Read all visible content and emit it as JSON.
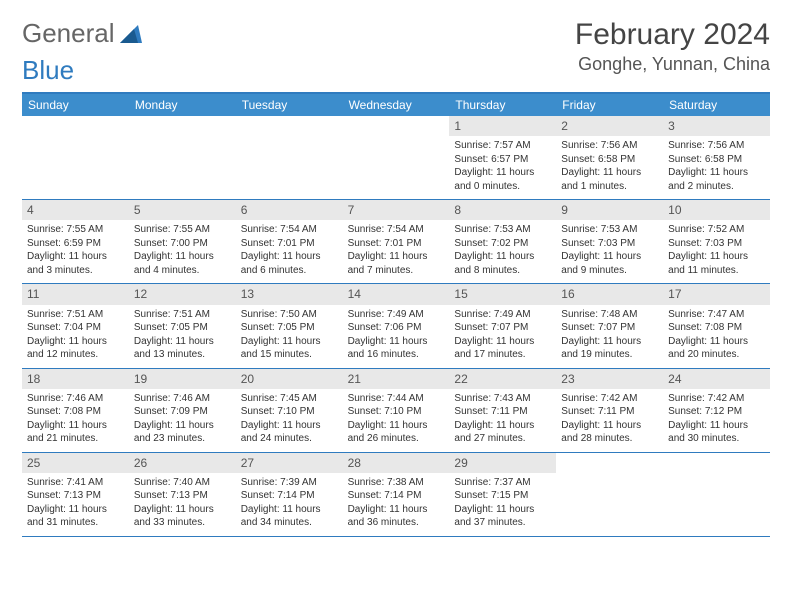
{
  "logo": {
    "text1": "General",
    "text2": "Blue"
  },
  "title": "February 2024",
  "location": "Gonghe, Yunnan, China",
  "colors": {
    "header_bar": "#3c8dcc",
    "border": "#2f7bbf",
    "daynum_bg": "#e8e8e8",
    "text": "#333333",
    "logo_gray": "#666666",
    "logo_blue": "#2f7bbf"
  },
  "typography": {
    "title_fontsize": 30,
    "location_fontsize": 18,
    "dow_fontsize": 12,
    "daynum_fontsize": 12,
    "info_fontsize": 10
  },
  "layout": {
    "columns": 7,
    "rows": 5,
    "cell_min_height": 82
  },
  "days_of_week": [
    "Sunday",
    "Monday",
    "Tuesday",
    "Wednesday",
    "Thursday",
    "Friday",
    "Saturday"
  ],
  "weeks": [
    [
      null,
      null,
      null,
      null,
      {
        "n": "1",
        "sr": "7:57 AM",
        "ss": "6:57 PM",
        "dh": "11",
        "dm": "0"
      },
      {
        "n": "2",
        "sr": "7:56 AM",
        "ss": "6:58 PM",
        "dh": "11",
        "dm": "1"
      },
      {
        "n": "3",
        "sr": "7:56 AM",
        "ss": "6:58 PM",
        "dh": "11",
        "dm": "2"
      }
    ],
    [
      {
        "n": "4",
        "sr": "7:55 AM",
        "ss": "6:59 PM",
        "dh": "11",
        "dm": "3"
      },
      {
        "n": "5",
        "sr": "7:55 AM",
        "ss": "7:00 PM",
        "dh": "11",
        "dm": "4"
      },
      {
        "n": "6",
        "sr": "7:54 AM",
        "ss": "7:01 PM",
        "dh": "11",
        "dm": "6"
      },
      {
        "n": "7",
        "sr": "7:54 AM",
        "ss": "7:01 PM",
        "dh": "11",
        "dm": "7"
      },
      {
        "n": "8",
        "sr": "7:53 AM",
        "ss": "7:02 PM",
        "dh": "11",
        "dm": "8"
      },
      {
        "n": "9",
        "sr": "7:53 AM",
        "ss": "7:03 PM",
        "dh": "11",
        "dm": "9"
      },
      {
        "n": "10",
        "sr": "7:52 AM",
        "ss": "7:03 PM",
        "dh": "11",
        "dm": "11"
      }
    ],
    [
      {
        "n": "11",
        "sr": "7:51 AM",
        "ss": "7:04 PM",
        "dh": "11",
        "dm": "12"
      },
      {
        "n": "12",
        "sr": "7:51 AM",
        "ss": "7:05 PM",
        "dh": "11",
        "dm": "13"
      },
      {
        "n": "13",
        "sr": "7:50 AM",
        "ss": "7:05 PM",
        "dh": "11",
        "dm": "15"
      },
      {
        "n": "14",
        "sr": "7:49 AM",
        "ss": "7:06 PM",
        "dh": "11",
        "dm": "16"
      },
      {
        "n": "15",
        "sr": "7:49 AM",
        "ss": "7:07 PM",
        "dh": "11",
        "dm": "17"
      },
      {
        "n": "16",
        "sr": "7:48 AM",
        "ss": "7:07 PM",
        "dh": "11",
        "dm": "19"
      },
      {
        "n": "17",
        "sr": "7:47 AM",
        "ss": "7:08 PM",
        "dh": "11",
        "dm": "20"
      }
    ],
    [
      {
        "n": "18",
        "sr": "7:46 AM",
        "ss": "7:08 PM",
        "dh": "11",
        "dm": "21"
      },
      {
        "n": "19",
        "sr": "7:46 AM",
        "ss": "7:09 PM",
        "dh": "11",
        "dm": "23"
      },
      {
        "n": "20",
        "sr": "7:45 AM",
        "ss": "7:10 PM",
        "dh": "11",
        "dm": "24"
      },
      {
        "n": "21",
        "sr": "7:44 AM",
        "ss": "7:10 PM",
        "dh": "11",
        "dm": "26"
      },
      {
        "n": "22",
        "sr": "7:43 AM",
        "ss": "7:11 PM",
        "dh": "11",
        "dm": "27"
      },
      {
        "n": "23",
        "sr": "7:42 AM",
        "ss": "7:11 PM",
        "dh": "11",
        "dm": "28"
      },
      {
        "n": "24",
        "sr": "7:42 AM",
        "ss": "7:12 PM",
        "dh": "11",
        "dm": "30"
      }
    ],
    [
      {
        "n": "25",
        "sr": "7:41 AM",
        "ss": "7:13 PM",
        "dh": "11",
        "dm": "31"
      },
      {
        "n": "26",
        "sr": "7:40 AM",
        "ss": "7:13 PM",
        "dh": "11",
        "dm": "33"
      },
      {
        "n": "27",
        "sr": "7:39 AM",
        "ss": "7:14 PM",
        "dh": "11",
        "dm": "34"
      },
      {
        "n": "28",
        "sr": "7:38 AM",
        "ss": "7:14 PM",
        "dh": "11",
        "dm": "36"
      },
      {
        "n": "29",
        "sr": "7:37 AM",
        "ss": "7:15 PM",
        "dh": "11",
        "dm": "37"
      },
      null,
      null
    ]
  ],
  "labels": {
    "sunrise": "Sunrise:",
    "sunset": "Sunset:",
    "daylight": "Daylight:",
    "hours": "hours",
    "and": "and",
    "minutes": "minutes."
  }
}
